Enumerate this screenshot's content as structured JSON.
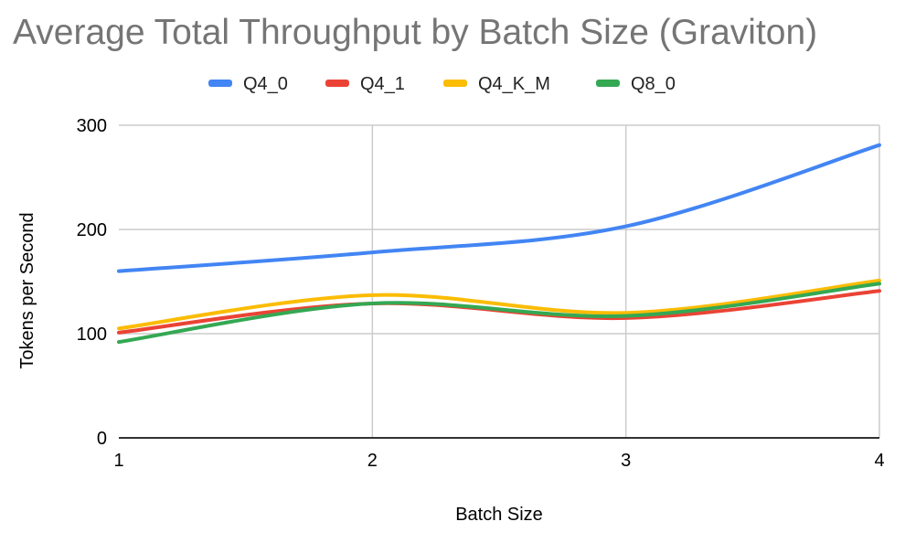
{
  "chart_data": {
    "type": "line",
    "title": "Average Total Throughput by Batch Size (Graviton)",
    "xlabel": "Batch Size",
    "ylabel": "Tokens per Second",
    "x": [
      1,
      2,
      3,
      4
    ],
    "x_tick_labels": [
      "1",
      "2",
      "3",
      "4"
    ],
    "xlim": [
      1,
      4
    ],
    "ylim": [
      0,
      300
    ],
    "y_ticks": [
      0,
      100,
      200,
      300
    ],
    "y_tick_labels": [
      "0",
      "100",
      "200",
      "300"
    ],
    "grid": true,
    "legend_position": "top",
    "smooth": true,
    "series": [
      {
        "name": "Q4_0",
        "color": "#4285F4",
        "values": [
          160,
          178,
          203,
          281
        ]
      },
      {
        "name": "Q4_1",
        "color": "#EA4335",
        "values": [
          101,
          129,
          115,
          141
        ]
      },
      {
        "name": "Q4_K_M",
        "color": "#FBBC04",
        "values": [
          105,
          137,
          120,
          151
        ]
      },
      {
        "name": "Q8_0",
        "color": "#34A853",
        "values": [
          92,
          129,
          117,
          148
        ]
      }
    ]
  }
}
